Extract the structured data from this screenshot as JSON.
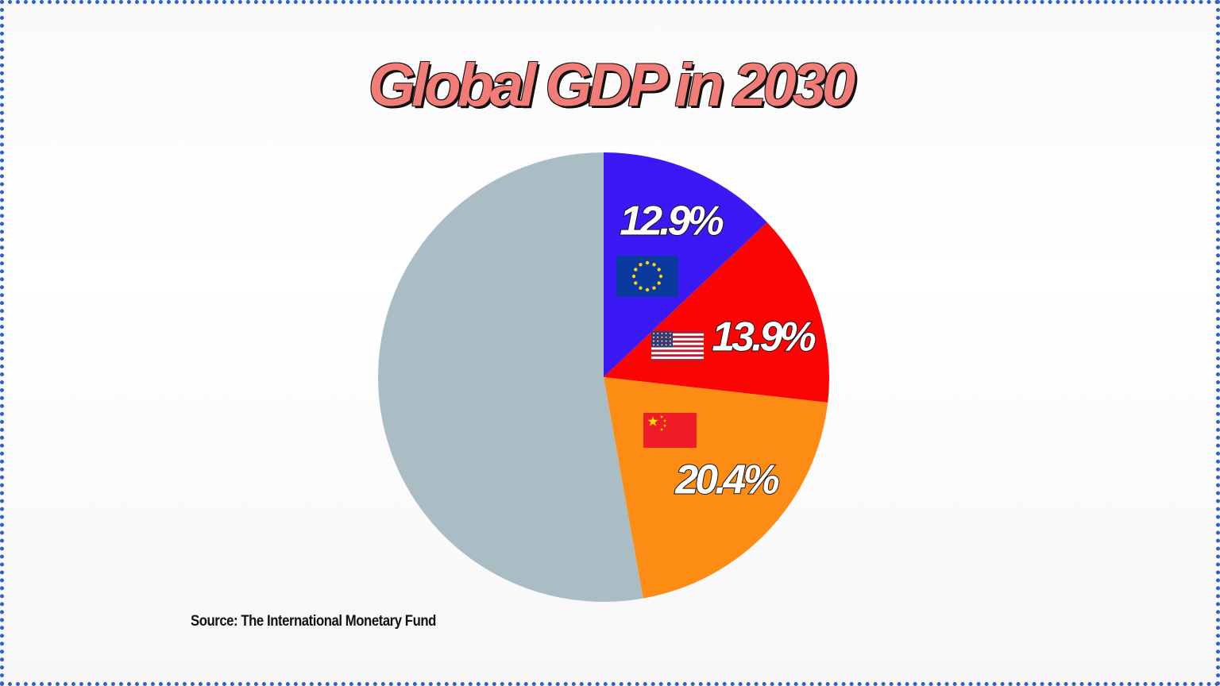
{
  "chart_data": {
    "type": "pie",
    "title": "Global GDP in 2030",
    "slices": [
      {
        "label": "12.9%",
        "value": 12.9,
        "color": "#3b19f5",
        "flag": "eu-flag-icon"
      },
      {
        "label": "13.9%",
        "value": 13.9,
        "color": "#fb0504",
        "flag": "us-flag-icon"
      },
      {
        "label": "20.4%",
        "value": 20.4,
        "color": "#fd8c15",
        "flag": "china-flag-icon"
      },
      {
        "label": "",
        "value": 52.8,
        "color": "#abbdc4",
        "flag": ""
      }
    ],
    "start_angle": "12 o'clock",
    "direction": "clockwise",
    "source": "Source: The International Monetary Fund"
  },
  "colors": {
    "title": "#f27c78",
    "border": "#2f62c4"
  }
}
